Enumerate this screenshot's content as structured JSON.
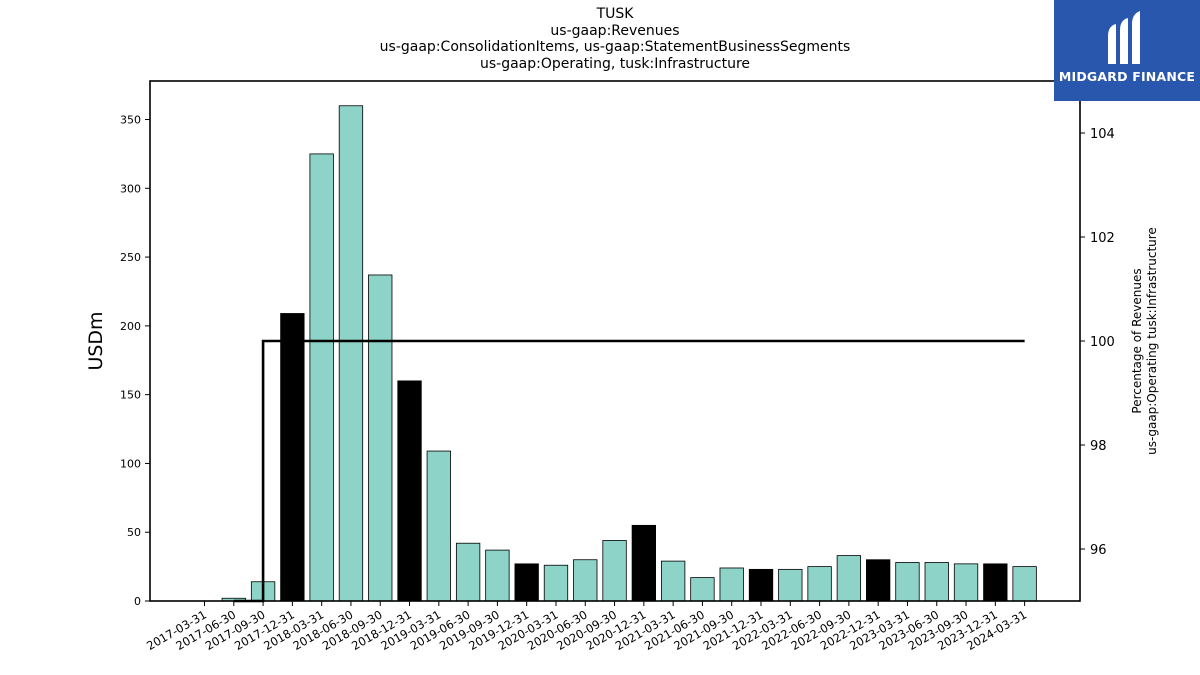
{
  "chart_data": {
    "type": "bar",
    "title_lines": [
      "TUSK",
      "us-gaap:Revenues",
      "us-gaap:ConsolidationItems, us-gaap:StatementBusinessSegments",
      "us-gaap:Operating, tusk:Infrastructure"
    ],
    "ylabel": "USDm",
    "ylabel_right": [
      "Percentage of Revenues",
      "us-gaap:Operating tusk:Infrastructure"
    ],
    "ylim": [
      0,
      378
    ],
    "y_ticks": [
      0,
      50,
      100,
      150,
      200,
      250,
      300,
      350
    ],
    "ylim_right": [
      95.0,
      105.0
    ],
    "y_ticks_right": [
      96,
      98,
      100,
      102,
      104
    ],
    "categories": [
      "2017-03-31",
      "2017-06-30",
      "2017-09-30",
      "2017-12-31",
      "2018-03-31",
      "2018-06-30",
      "2018-09-30",
      "2018-12-31",
      "2019-03-31",
      "2019-06-30",
      "2019-09-30",
      "2019-12-31",
      "2020-03-31",
      "2020-06-30",
      "2020-09-30",
      "2020-12-31",
      "2021-03-31",
      "2021-06-30",
      "2021-09-30",
      "2021-12-31",
      "2022-03-31",
      "2022-06-30",
      "2022-09-30",
      "2022-12-31",
      "2023-03-31",
      "2023-06-30",
      "2023-09-30",
      "2023-12-31",
      "2024-03-31"
    ],
    "series": [
      {
        "type": "bar",
        "values": [
          0,
          2,
          14,
          209,
          325,
          360,
          237,
          160,
          109,
          42,
          37,
          27,
          26,
          30,
          44,
          55,
          29,
          17,
          24,
          23,
          23,
          25,
          33,
          30,
          28,
          28,
          27,
          27,
          25
        ],
        "highlight": [
          false,
          false,
          false,
          true,
          false,
          false,
          false,
          true,
          false,
          false,
          false,
          true,
          false,
          false,
          false,
          true,
          false,
          false,
          false,
          true,
          false,
          false,
          false,
          true,
          false,
          false,
          false,
          true,
          false
        ]
      },
      {
        "type": "line",
        "axis": "right",
        "values": [
          null,
          95.0,
          100,
          100,
          100,
          100,
          100,
          100,
          100,
          100,
          100,
          100,
          100,
          100,
          100,
          100,
          100,
          100,
          100,
          100,
          100,
          100,
          100,
          100,
          100,
          100,
          100,
          100,
          100
        ]
      }
    ],
    "colors": {
      "bar": "#8dd3c7",
      "highlight": "#000000",
      "edge": "#000000",
      "line": "#000000"
    },
    "grid": false,
    "legend": "none"
  },
  "logo": {
    "text": "MIDGARD FINANCE",
    "background": "#2a57ae"
  }
}
